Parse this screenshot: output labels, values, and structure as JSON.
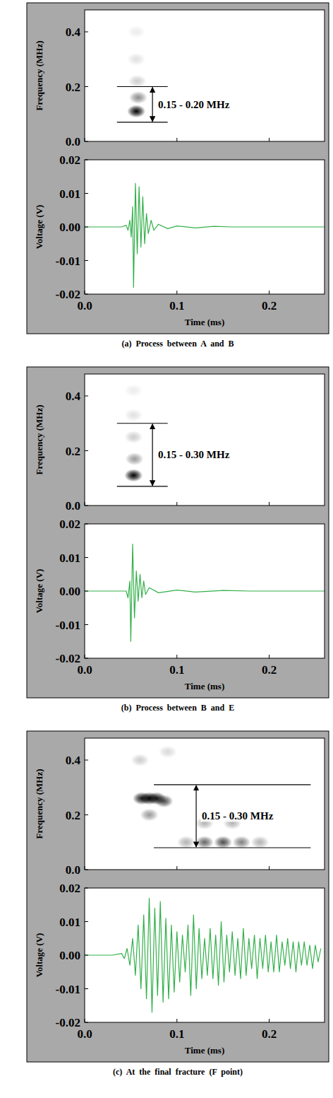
{
  "chart_data": [
    {
      "type": "spectrogram",
      "y_label": "Frequency (MHz)",
      "xlim": [
        0,
        0.26
      ],
      "ylim": [
        0,
        0.48
      ],
      "xticks": [
        0,
        0.1,
        0.2
      ],
      "yticks": [
        {
          "value": 0,
          "label": "0.0"
        },
        0.2,
        0.4
      ],
      "tick_labels": "y",
      "blobs": [
        {
          "t": 0.056,
          "f": 0.11,
          "intensity": 1
        },
        {
          "t": 0.058,
          "f": 0.16,
          "intensity": 0.45
        },
        {
          "t": 0.057,
          "f": 0.22,
          "intensity": 0.2
        },
        {
          "t": 0.056,
          "f": 0.3,
          "intensity": 0.12
        },
        {
          "t": 0.056,
          "f": 0.4,
          "intensity": 0.08
        }
      ],
      "annotation": {
        "text": "0.15 - 0.20 MHz",
        "f_range": [
          0.07,
          0.2
        ],
        "t_range": [
          0.035,
          0.09
        ]
      }
    },
    {
      "type": "line",
      "title": "(a) Process between A and B",
      "x_label": "Time (ms)",
      "y_label": "Voltage (V)",
      "color": "#33b04a",
      "xlim": [
        0,
        0.26
      ],
      "ylim": [
        -0.02,
        0.02
      ],
      "xticks": [
        {
          "value": 0,
          "label": "0.0"
        },
        0.1,
        0.2
      ],
      "yticks": [
        -0.02,
        -0.01,
        {
          "value": 0,
          "label": "0.00"
        },
        0.01,
        0.02
      ],
      "x": [
        0,
        0.02,
        0.04,
        0.045,
        0.047,
        0.049,
        0.0505,
        0.052,
        0.053,
        0.055,
        0.057,
        0.059,
        0.061,
        0.063,
        0.065,
        0.067,
        0.069,
        0.072,
        0.075,
        0.08,
        0.09,
        0.1,
        0.12,
        0.14,
        0.16,
        0.26
      ],
      "values": [
        0,
        0,
        0,
        0.0005,
        -0.001,
        0.002,
        -0.003,
        0.006,
        -0.018,
        0.013,
        -0.008,
        0.012,
        -0.006,
        0.009,
        -0.005,
        0.004,
        -0.002,
        0.002,
        -0.001,
        0.0008,
        -0.0005,
        0.0003,
        -0.0003,
        0.0002,
        0,
        0
      ]
    },
    {
      "type": "spectrogram",
      "y_label": "Frequency (MHz)",
      "xlim": [
        0,
        0.26
      ],
      "ylim": [
        0,
        0.48
      ],
      "xticks": [
        0,
        0.1,
        0.2
      ],
      "yticks": [
        {
          "value": 0,
          "label": "0.0"
        },
        0.2,
        0.4
      ],
      "tick_labels": "y",
      "blobs": [
        {
          "t": 0.053,
          "f": 0.11,
          "intensity": 1
        },
        {
          "t": 0.054,
          "f": 0.17,
          "intensity": 0.4
        },
        {
          "t": 0.053,
          "f": 0.25,
          "intensity": 0.2
        },
        {
          "t": 0.053,
          "f": 0.33,
          "intensity": 0.12
        },
        {
          "t": 0.053,
          "f": 0.42,
          "intensity": 0.08
        }
      ],
      "annotation": {
        "text": "0.15 - 0.30 MHz",
        "f_range": [
          0.07,
          0.3
        ],
        "t_range": [
          0.035,
          0.09
        ]
      }
    },
    {
      "type": "line",
      "title": "(b) Process between B and E",
      "x_label": "Time (ms)",
      "y_label": "Voltage (V)",
      "color": "#33b04a",
      "xlim": [
        0,
        0.26
      ],
      "ylim": [
        -0.02,
        0.02
      ],
      "xticks": [
        {
          "value": 0,
          "label": "0.0"
        },
        0.1,
        0.2
      ],
      "yticks": [
        -0.02,
        -0.01,
        {
          "value": 0,
          "label": "0.00"
        },
        0.01,
        0.02
      ],
      "x": [
        0,
        0.02,
        0.045,
        0.047,
        0.049,
        0.05,
        0.052,
        0.054,
        0.056,
        0.058,
        0.06,
        0.062,
        0.064,
        0.066,
        0.07,
        0.08,
        0.1,
        0.12,
        0.15,
        0.18,
        0.26
      ],
      "values": [
        0,
        0,
        0,
        -0.002,
        0.003,
        -0.015,
        0.014,
        -0.008,
        0.006,
        -0.003,
        0.005,
        -0.002,
        0.003,
        -0.001,
        0.001,
        -0.0005,
        0.0003,
        -0.0003,
        0.0002,
        0,
        0
      ]
    },
    {
      "type": "spectrogram",
      "y_label": "Frequency (MHz)",
      "xlim": [
        0,
        0.26
      ],
      "ylim": [
        0,
        0.48
      ],
      "xticks": [
        0,
        0.1,
        0.2
      ],
      "yticks": [
        {
          "value": 0,
          "label": "0.0"
        },
        0.2,
        0.4
      ],
      "tick_labels": "y",
      "blobs": [
        {
          "t": 0.062,
          "f": 0.26,
          "intensity": 0.9
        },
        {
          "t": 0.07,
          "f": 0.26,
          "intensity": 1
        },
        {
          "t": 0.078,
          "f": 0.26,
          "intensity": 0.9
        },
        {
          "t": 0.086,
          "f": 0.25,
          "intensity": 0.7
        },
        {
          "t": 0.07,
          "f": 0.2,
          "intensity": 0.4
        },
        {
          "t": 0.11,
          "f": 0.1,
          "intensity": 0.3
        },
        {
          "t": 0.13,
          "f": 0.1,
          "intensity": 0.6
        },
        {
          "t": 0.15,
          "f": 0.1,
          "intensity": 0.7
        },
        {
          "t": 0.17,
          "f": 0.1,
          "intensity": 0.5
        },
        {
          "t": 0.19,
          "f": 0.1,
          "intensity": 0.3
        },
        {
          "t": 0.13,
          "f": 0.17,
          "intensity": 0.3
        },
        {
          "t": 0.16,
          "f": 0.17,
          "intensity": 0.3
        },
        {
          "t": 0.06,
          "f": 0.4,
          "intensity": 0.2
        },
        {
          "t": 0.09,
          "f": 0.43,
          "intensity": 0.15
        }
      ],
      "annotation": {
        "text": "0.15 - 0.30 MHz",
        "f_range": [
          0.08,
          0.31
        ],
        "t_range": [
          0.075,
          0.245
        ]
      }
    },
    {
      "type": "line",
      "title": "(c) At the final fracture (F point)",
      "x_label": "Time (ms)",
      "y_label": "Voltage (V)",
      "color": "#33b04a",
      "xlim": [
        0,
        0.26
      ],
      "ylim": [
        -0.02,
        0.02
      ],
      "xticks": [
        {
          "value": 0,
          "label": "0.0"
        },
        0.1,
        0.2
      ],
      "yticks": [
        -0.02,
        -0.01,
        {
          "value": 0,
          "label": "0.00"
        },
        0.01,
        0.02
      ],
      "x": [
        0,
        0.03,
        0.04,
        0.043,
        0.046,
        0.049,
        0.052,
        0.055,
        0.058,
        0.061,
        0.064,
        0.067,
        0.07,
        0.073,
        0.076,
        0.079,
        0.082,
        0.085,
        0.088,
        0.091,
        0.094,
        0.097,
        0.1,
        0.103,
        0.106,
        0.109,
        0.112,
        0.115,
        0.118,
        0.121,
        0.124,
        0.127,
        0.13,
        0.133,
        0.136,
        0.139,
        0.142,
        0.145,
        0.148,
        0.151,
        0.154,
        0.157,
        0.16,
        0.163,
        0.166,
        0.169,
        0.172,
        0.175,
        0.178,
        0.181,
        0.184,
        0.187,
        0.19,
        0.193,
        0.196,
        0.199,
        0.202,
        0.205,
        0.208,
        0.211,
        0.214,
        0.217,
        0.22,
        0.223,
        0.226,
        0.229,
        0.232,
        0.235,
        0.238,
        0.241,
        0.244,
        0.247,
        0.25,
        0.253,
        0.256
      ],
      "values": [
        0,
        0,
        0.0005,
        -0.001,
        0.002,
        -0.003,
        0.005,
        -0.006,
        0.009,
        -0.01,
        0.012,
        -0.013,
        0.017,
        -0.017,
        0.014,
        -0.012,
        0.016,
        -0.014,
        0.011,
        -0.013,
        0.009,
        -0.011,
        0.007,
        -0.008,
        0.006,
        -0.005,
        0.009,
        -0.012,
        0.012,
        -0.01,
        0.008,
        -0.007,
        0.005,
        -0.006,
        0.008,
        -0.007,
        0.006,
        -0.009,
        0.01,
        -0.008,
        0.006,
        -0.005,
        0.007,
        -0.006,
        0.005,
        -0.007,
        0.008,
        -0.006,
        0.005,
        -0.004,
        0.006,
        -0.007,
        0.005,
        -0.004,
        0.006,
        -0.005,
        0.004,
        -0.005,
        0.006,
        -0.005,
        0.004,
        -0.003,
        0.005,
        -0.004,
        0.004,
        -0.005,
        0.004,
        -0.003,
        0.004,
        -0.003,
        0.003,
        -0.004,
        0.003,
        -0.002,
        0.002
      ]
    }
  ]
}
